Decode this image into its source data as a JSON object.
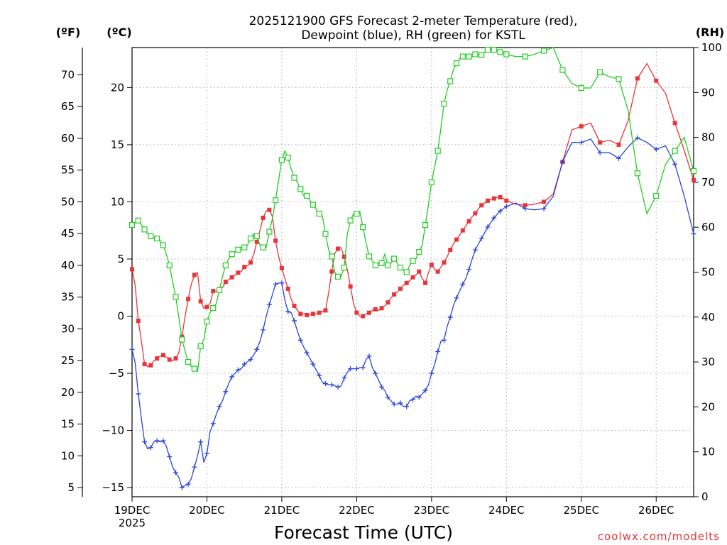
{
  "chart_data": {
    "type": "line",
    "title_line1": "2025121900 GFS Forecast 2-meter Temperature (red),",
    "title_line2": "Dewpoint (blue), RH (green) for KSTL",
    "xlabel": "Forecast Time (UTC)",
    "credit": "coolwx.com/modelts",
    "left_unit_f": "(ºF)",
    "left_unit_c": "(ºC)",
    "right_unit": "(RH)",
    "x_range_hours": [
      0,
      180
    ],
    "c_range": [
      -15.8,
      23.5
    ],
    "rh_range": [
      0,
      100
    ],
    "x_ticks": [
      {
        "hour": 0,
        "label": "19DEC",
        "sub": "2025"
      },
      {
        "hour": 24,
        "label": "20DEC",
        "sub": ""
      },
      {
        "hour": 48,
        "label": "21DEC",
        "sub": ""
      },
      {
        "hour": 72,
        "label": "22DEC",
        "sub": ""
      },
      {
        "hour": 96,
        "label": "23DEC",
        "sub": ""
      },
      {
        "hour": 120,
        "label": "24DEC",
        "sub": ""
      },
      {
        "hour": 144,
        "label": "25DEC",
        "sub": ""
      },
      {
        "hour": 168,
        "label": "26DEC",
        "sub": ""
      }
    ],
    "c_ticks": [
      -15,
      -10,
      -5,
      0,
      5,
      10,
      15,
      20
    ],
    "f_ticks": [
      5,
      10,
      15,
      20,
      25,
      30,
      35,
      40,
      45,
      50,
      55,
      60,
      65,
      70
    ],
    "rh_ticks": [
      0,
      10,
      20,
      30,
      40,
      50,
      60,
      70,
      80,
      90,
      100
    ],
    "series": [
      {
        "name": "2-meter Temperature",
        "color": "#e8343a",
        "unit": "C",
        "marker": "square-filled",
        "x": [
          0,
          1,
          2,
          3,
          4,
          5,
          6,
          7,
          8,
          9,
          10,
          11,
          12,
          13,
          14,
          15,
          16,
          17,
          18,
          19,
          20,
          21,
          22,
          23,
          24,
          25,
          26,
          27,
          28,
          29,
          30,
          31,
          32,
          33,
          34,
          35,
          36,
          37,
          38,
          39,
          40,
          41,
          42,
          43,
          44,
          45,
          46,
          47,
          48,
          49,
          50,
          51,
          52,
          53,
          54,
          55,
          56,
          57,
          58,
          59,
          60,
          61,
          62,
          63,
          64,
          65,
          66,
          67,
          68,
          69,
          70,
          71,
          72,
          73,
          74,
          75,
          76,
          77,
          78,
          79,
          80,
          81,
          82,
          83,
          84,
          85,
          86,
          87,
          88,
          89,
          90,
          91,
          92,
          93,
          94,
          95,
          96,
          97,
          98,
          99,
          100,
          101,
          102,
          103,
          104,
          105,
          106,
          107,
          108,
          109,
          110,
          111,
          112,
          113,
          114,
          115,
          116,
          117,
          118,
          119,
          120,
          123,
          126,
          129,
          132,
          135,
          138,
          141,
          144,
          147,
          150,
          153,
          156,
          159,
          162,
          165,
          168,
          171,
          174,
          177,
          180
        ],
        "values": [
          4.1,
          2.7,
          -0.4,
          -2.2,
          -4.2,
          -4.4,
          -4.3,
          -3.9,
          -3.7,
          -3.5,
          -3.4,
          -3.6,
          -3.8,
          -3.9,
          -3.7,
          -3.2,
          -1.8,
          0.0,
          1.5,
          2.8,
          3.6,
          3.8,
          1.3,
          0.7,
          0.8,
          1.1,
          2.2,
          2.2,
          2.3,
          2.5,
          3.0,
          3.2,
          3.4,
          3.6,
          3.8,
          3.9,
          4.3,
          4.4,
          4.7,
          5.4,
          6.5,
          7.5,
          8.6,
          9.2,
          9.3,
          8.7,
          6.6,
          5.2,
          4.2,
          3.3,
          2.4,
          1.5,
          0.9,
          0.5,
          0.2,
          0.2,
          0.1,
          0.1,
          0.2,
          0.2,
          0.3,
          0.4,
          0.5,
          2.0,
          3.9,
          5.5,
          5.9,
          6.0,
          5.2,
          4.1,
          2.6,
          1.1,
          0.3,
          0.0,
          0.0,
          0.2,
          0.3,
          0.5,
          0.6,
          0.5,
          0.7,
          0.9,
          1.2,
          1.6,
          1.9,
          2.1,
          2.4,
          2.7,
          2.9,
          3.1,
          3.4,
          3.6,
          3.9,
          3.3,
          2.9,
          3.8,
          4.5,
          4.1,
          3.9,
          4.3,
          4.7,
          5.2,
          5.8,
          6.3,
          6.7,
          7.1,
          7.5,
          7.9,
          8.3,
          8.7,
          9.0,
          9.4,
          9.7,
          9.9,
          10.1,
          10.2,
          10.3,
          10.4,
          10.4,
          10.3,
          10.1,
          9.8,
          9.7,
          9.8,
          10.0,
          10.7,
          13.5,
          16.3,
          16.6,
          16.9,
          15.2,
          15.4,
          15.0,
          17.1,
          20.8,
          22.1,
          20.6,
          19.5,
          16.9,
          14.5,
          11.9
        ]
      },
      {
        "name": "Dewpoint",
        "color": "#2b44d8",
        "unit": "C",
        "marker": "plus",
        "x": [
          0,
          1,
          2,
          3,
          4,
          5,
          6,
          7,
          8,
          9,
          10,
          11,
          12,
          13,
          14,
          15,
          16,
          17,
          18,
          19,
          20,
          21,
          22,
          23,
          24,
          25,
          26,
          27,
          28,
          29,
          30,
          31,
          32,
          33,
          34,
          35,
          36,
          37,
          38,
          39,
          40,
          41,
          42,
          43,
          44,
          45,
          46,
          47,
          48,
          49,
          50,
          51,
          52,
          53,
          54,
          55,
          56,
          57,
          58,
          59,
          60,
          61,
          62,
          63,
          64,
          65,
          66,
          67,
          68,
          69,
          70,
          71,
          72,
          73,
          74,
          75,
          76,
          77,
          78,
          79,
          80,
          81,
          82,
          83,
          84,
          85,
          86,
          87,
          88,
          89,
          90,
          91,
          92,
          93,
          94,
          95,
          96,
          97,
          98,
          99,
          100,
          101,
          102,
          103,
          104,
          105,
          106,
          107,
          108,
          109,
          110,
          111,
          112,
          113,
          114,
          115,
          116,
          117,
          118,
          119,
          120,
          123,
          126,
          129,
          132,
          135,
          138,
          141,
          144,
          147,
          150,
          153,
          156,
          159,
          162,
          165,
          168,
          171,
          174,
          177,
          180
        ],
        "values": [
          -2.9,
          -4.1,
          -6.8,
          -9.0,
          -11.0,
          -11.6,
          -11.5,
          -11.0,
          -10.9,
          -11.0,
          -10.9,
          -11.4,
          -12.3,
          -13.2,
          -13.7,
          -14.1,
          -15.0,
          -14.8,
          -14.7,
          -14.2,
          -13.2,
          -12.2,
          -11.0,
          -12.8,
          -12.0,
          -10.1,
          -9.4,
          -8.6,
          -7.9,
          -7.4,
          -6.6,
          -5.9,
          -5.3,
          -5.0,
          -4.7,
          -4.6,
          -4.2,
          -4.0,
          -3.8,
          -3.4,
          -2.9,
          -2.2,
          -1.2,
          0.0,
          1.0,
          1.9,
          2.8,
          2.9,
          2.9,
          1.4,
          0.4,
          0.3,
          -0.4,
          -1.3,
          -2.1,
          -2.7,
          -3.2,
          -3.7,
          -4.2,
          -4.7,
          -5.2,
          -5.8,
          -5.9,
          -6.0,
          -6.0,
          -6.1,
          -6.2,
          -6.1,
          -5.4,
          -4.9,
          -4.6,
          -4.6,
          -4.6,
          -4.5,
          -4.5,
          -3.8,
          -3.5,
          -4.5,
          -5.0,
          -5.6,
          -6.2,
          -6.5,
          -7.1,
          -7.4,
          -7.7,
          -7.7,
          -7.6,
          -7.9,
          -7.9,
          -7.4,
          -7.3,
          -7.0,
          -7.1,
          -6.8,
          -6.5,
          -6.0,
          -5.0,
          -4.2,
          -3.1,
          -2.2,
          -2.1,
          -0.9,
          -0.1,
          0.9,
          1.6,
          2.2,
          2.8,
          3.3,
          4.1,
          5.0,
          5.8,
          6.3,
          6.8,
          7.3,
          7.8,
          8.2,
          8.6,
          8.9,
          9.2,
          9.4,
          9.6,
          9.9,
          9.4,
          9.3,
          9.4,
          10.5,
          13.5,
          15.2,
          15.2,
          15.5,
          14.3,
          14.3,
          13.8,
          14.8,
          15.6,
          15.2,
          14.6,
          14.9,
          13.3,
          10.5,
          7.2
        ]
      },
      {
        "name": "RH",
        "color": "#22cc22",
        "unit": "RH",
        "marker": "square-open",
        "x": [
          0,
          1,
          2,
          3,
          4,
          5,
          6,
          7,
          8,
          9,
          10,
          11,
          12,
          13,
          14,
          15,
          16,
          17,
          18,
          19,
          20,
          21,
          22,
          23,
          24,
          25,
          26,
          27,
          28,
          29,
          30,
          31,
          32,
          33,
          34,
          35,
          36,
          37,
          38,
          39,
          40,
          41,
          42,
          43,
          44,
          45,
          46,
          47,
          48,
          49,
          50,
          51,
          52,
          53,
          54,
          55,
          56,
          57,
          58,
          59,
          60,
          61,
          62,
          63,
          64,
          65,
          66,
          67,
          68,
          69,
          70,
          71,
          72,
          73,
          74,
          75,
          76,
          77,
          78,
          79,
          80,
          81,
          82,
          83,
          84,
          85,
          86,
          87,
          88,
          89,
          90,
          91,
          92,
          93,
          94,
          95,
          96,
          97,
          98,
          99,
          100,
          101,
          102,
          103,
          104,
          105,
          106,
          107,
          108,
          109,
          110,
          111,
          112,
          113,
          114,
          115,
          116,
          117,
          118,
          119,
          120,
          123,
          126,
          129,
          132,
          135,
          138,
          141,
          144,
          147,
          150,
          153,
          156,
          159,
          162,
          165,
          168,
          171,
          174,
          177,
          180
        ],
        "values": [
          60.5,
          61.0,
          61.5,
          60.5,
          59.5,
          58.5,
          58.0,
          57.6,
          57.5,
          57.0,
          56.0,
          54.0,
          51.5,
          48.0,
          44.5,
          40.0,
          35.0,
          32.5,
          30.0,
          29.0,
          28.5,
          28.0,
          33.5,
          35.0,
          39.0,
          41.0,
          42.0,
          43.0,
          46.0,
          49.0,
          51.5,
          53.0,
          54.0,
          54.5,
          55.0,
          55.5,
          55.5,
          56.0,
          57.5,
          58.5,
          58.0,
          56.0,
          55.5,
          55.5,
          59.0,
          62.0,
          66.0,
          70.5,
          75.0,
          77.0,
          75.5,
          73.0,
          71.0,
          70.0,
          68.5,
          67.0,
          67.0,
          66.0,
          65.0,
          64.0,
          63.0,
          62.5,
          58.5,
          55.0,
          53.5,
          50.0,
          49.0,
          49.0,
          51.0,
          58.5,
          61.5,
          63.0,
          63.0,
          63.5,
          60.0,
          56.5,
          53.5,
          52.5,
          51.5,
          52.0,
          52.0,
          54.0,
          51.5,
          52.0,
          53.0,
          52.0,
          51.0,
          50.5,
          50.0,
          51.5,
          52.5,
          53.0,
          54.5,
          56.0,
          60.5,
          65.0,
          70.0,
          73.5,
          77.0,
          82.0,
          87.5,
          90.5,
          92.5,
          95.0,
          96.5,
          97.5,
          98.0,
          98.2,
          98.0,
          98.0,
          98.5,
          98.5,
          98.3,
          99.0,
          99.5,
          99.6,
          99.5,
          99.3,
          99.0,
          99.0,
          98.5,
          98.0,
          98.0,
          98.5,
          99.3,
          100.0,
          95.0,
          92.0,
          91.0,
          91.0,
          94.5,
          93.5,
          93.0,
          86.0,
          72.0,
          63.0,
          67.0,
          74.0,
          77.0,
          80.0,
          72.5
        ]
      }
    ]
  }
}
